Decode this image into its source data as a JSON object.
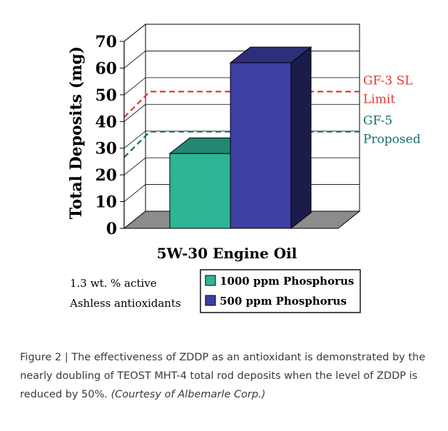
{
  "chart_data": {
    "type": "bar",
    "xlabel": "5W-30 Engine Oil",
    "ylabel": "Total Deposits (mg)",
    "ylim": [
      0,
      70
    ],
    "yticks": [
      0,
      10,
      20,
      30,
      40,
      50,
      60,
      70
    ],
    "grid": true,
    "series": [
      {
        "name": "1000 ppm Phosphorus",
        "value": 28,
        "color": "#2db596"
      },
      {
        "name": "500 ppm Phosphorus",
        "value": 62,
        "color": "#3d3fa3"
      }
    ],
    "reference_lines": [
      {
        "label_line1": "GF-3 SL",
        "label_line2": "Limit",
        "value": 48,
        "color": "#e0392d"
      },
      {
        "label_line1": "GF-5",
        "label_line2": "Proposed",
        "value": 33,
        "color": "#1a6b6b"
      }
    ],
    "note_lines": [
      "1.3 wt. % active",
      "Ashless antioxidants"
    ],
    "legend_position": "bottom"
  },
  "caption": {
    "text": "Figure 2 | The effectiveness of ZDDP as an antioxidant is demonstrated by the nearly doubling of TEOST MHT-4 total rod deposits when the level of ZDDP is reduced by 50%.",
    "credit": "(Courtesy of Albemarle Corp.)"
  }
}
